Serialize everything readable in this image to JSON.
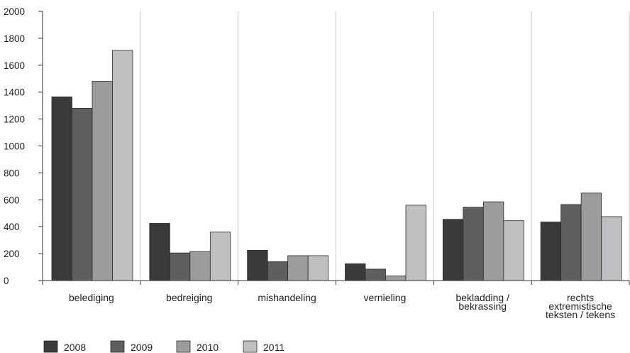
{
  "chart_data": {
    "type": "bar",
    "title": "",
    "xlabel": "",
    "ylabel": "",
    "ylim": [
      0,
      2000
    ],
    "yticks": [
      0,
      200,
      400,
      600,
      800,
      1000,
      1200,
      1400,
      1600,
      1800,
      2000
    ],
    "grid": "vertical separators between categories",
    "legend_position": "bottom-left",
    "categories": [
      [
        "belediging"
      ],
      [
        "bedreiging"
      ],
      [
        "mishandeling"
      ],
      [
        "vernieling"
      ],
      [
        "bekladding /",
        "bekrassing"
      ],
      [
        "rechts",
        "extremistische",
        "teksten / tekens"
      ]
    ],
    "series": [
      {
        "name": "2008",
        "color": "#3a3a3a",
        "values": [
          1365,
          425,
          225,
          125,
          455,
          435
        ]
      },
      {
        "name": "2009",
        "color": "#5f5f61",
        "values": [
          1280,
          205,
          140,
          85,
          545,
          565
        ]
      },
      {
        "name": "2010",
        "color": "#9c9c9e",
        "values": [
          1480,
          215,
          185,
          35,
          585,
          650
        ]
      },
      {
        "name": "2011",
        "color": "#bfbfc2",
        "values": [
          1710,
          360,
          185,
          560,
          445,
          475
        ]
      }
    ]
  }
}
